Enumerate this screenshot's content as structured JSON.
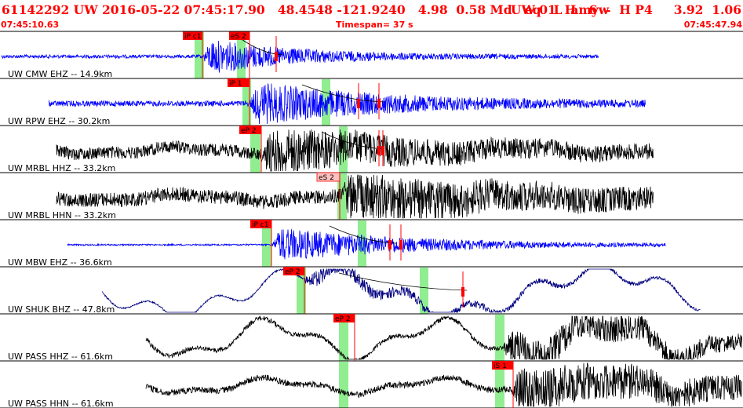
{
  "header": {
    "left": "61142292 UW 2016-05-22 07:45:17.90   48.4548 -121.9240   4.98  0.58 Md   eq   L  amyw",
    "right": "UW 01  H   6  -  H P4     3.92  1.06"
  },
  "subheader": {
    "start_time": "07:45:10.63",
    "timespan": "Timespan=  37 s",
    "end_time": "07:45:47.94"
  },
  "colors": {
    "trace_blue": "#0000ff",
    "trace_black": "#000000",
    "trace_navy": "#000080",
    "pick_marker": "#ff0000",
    "pick_marker_light": "#ffc0c0",
    "shade_green": "#90ee90",
    "separator": "#000000"
  },
  "channels": [
    {
      "label": "UW CMW EHZ -- 14.9km",
      "color": "trace_blue",
      "picks": [
        {
          "label": "iP c1",
          "light": false
        },
        {
          "label": "eS 2",
          "light": false
        }
      ]
    },
    {
      "label": "UW RPW EHZ -- 30.2km",
      "color": "trace_blue",
      "picks": [
        {
          "label": "iP 1",
          "light": false
        }
      ]
    },
    {
      "label": "UW MRBL HHZ -- 33.2km",
      "color": "trace_black",
      "picks": [
        {
          "label": "eP 2",
          "light": false
        }
      ]
    },
    {
      "label": "UW MRBL HHN -- 33.2km",
      "color": "trace_black",
      "picks": [
        {
          "label": "eS 2",
          "light": true
        }
      ]
    },
    {
      "label": "UW MBW EHZ -- 36.6km",
      "color": "trace_blue",
      "picks": [
        {
          "label": "iP c1",
          "light": false
        }
      ]
    },
    {
      "label": "UW SHUK BHZ -- 47.8km",
      "color": "trace_navy",
      "picks": [
        {
          "label": "eP 2",
          "light": false
        }
      ]
    },
    {
      "label": "UW PASS HHZ -- 61.6km",
      "color": "trace_black",
      "picks": [
        {
          "label": "eP 2",
          "light": false
        }
      ]
    },
    {
      "label": "UW PASS HHN -- 61.6km",
      "color": "trace_black",
      "picks": [
        {
          "label": "iS 1",
          "light": false
        }
      ]
    }
  ]
}
